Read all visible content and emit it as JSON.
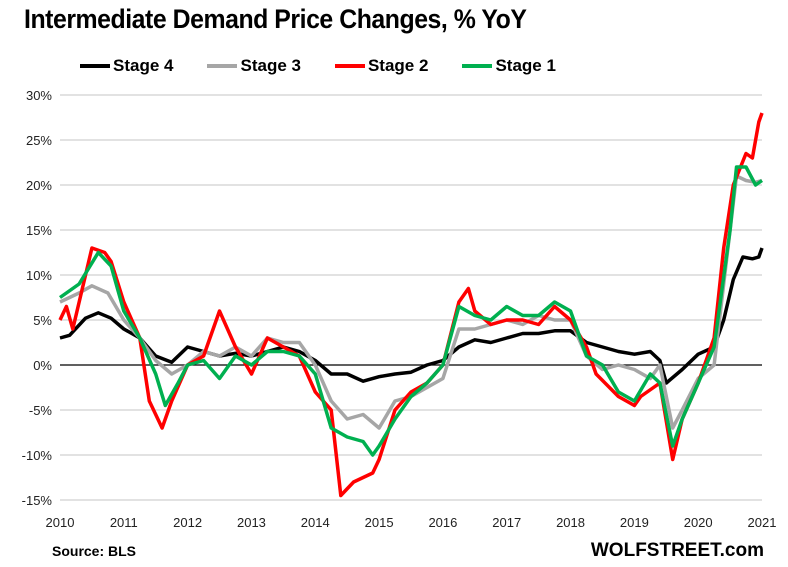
{
  "chart_data": {
    "type": "line",
    "title": "Intermediate Demand Price Changes, % YoY",
    "xlabel": "",
    "ylabel": "",
    "xlim": [
      2010,
      2021
    ],
    "ylim": [
      -15,
      30
    ],
    "yticks": [
      30,
      25,
      20,
      15,
      10,
      5,
      0,
      -5,
      -10,
      -15
    ],
    "ytick_labels": [
      "30%",
      "25%",
      "20%",
      "15%",
      "10%",
      "5%",
      "0%",
      "-5%",
      "-10%",
      "-15%"
    ],
    "xtick_labels": [
      "2010",
      "2011",
      "2012",
      "2013",
      "2014",
      "2015",
      "2016",
      "2017",
      "2018",
      "2019",
      "2020",
      "2021"
    ],
    "grid": true,
    "legend_position": "top",
    "series": [
      {
        "name": "Stage 4",
        "color": "#000000",
        "points": [
          [
            2010,
            3
          ],
          [
            2010.15,
            3.3
          ],
          [
            2010.4,
            5.2
          ],
          [
            2010.6,
            5.8
          ],
          [
            2010.8,
            5.2
          ],
          [
            2011,
            4
          ],
          [
            2011.25,
            3
          ],
          [
            2011.5,
            1
          ],
          [
            2011.75,
            0.3
          ],
          [
            2012,
            2
          ],
          [
            2012.25,
            1.5
          ],
          [
            2012.5,
            1
          ],
          [
            2012.75,
            1.3
          ],
          [
            2013,
            1
          ],
          [
            2013.25,
            1.5
          ],
          [
            2013.5,
            2
          ],
          [
            2013.75,
            1.5
          ],
          [
            2014,
            0.5
          ],
          [
            2014.25,
            -1
          ],
          [
            2014.5,
            -1
          ],
          [
            2014.75,
            -1.8
          ],
          [
            2015,
            -1.3
          ],
          [
            2015.25,
            -1
          ],
          [
            2015.5,
            -0.8
          ],
          [
            2015.75,
            0
          ],
          [
            2016,
            0.5
          ],
          [
            2016.25,
            2
          ],
          [
            2016.5,
            2.8
          ],
          [
            2016.75,
            2.5
          ],
          [
            2017,
            3
          ],
          [
            2017.25,
            3.5
          ],
          [
            2017.5,
            3.5
          ],
          [
            2017.75,
            3.8
          ],
          [
            2018,
            3.8
          ],
          [
            2018.25,
            2.5
          ],
          [
            2018.5,
            2
          ],
          [
            2018.75,
            1.5
          ],
          [
            2019,
            1.2
          ],
          [
            2019.25,
            1.5
          ],
          [
            2019.4,
            0.5
          ],
          [
            2019.5,
            -2
          ],
          [
            2019.75,
            -0.5
          ],
          [
            2020,
            1.2
          ],
          [
            2020.25,
            2
          ],
          [
            2020.4,
            5
          ],
          [
            2020.55,
            9.5
          ],
          [
            2020.7,
            12
          ],
          [
            2020.85,
            11.8
          ],
          [
            2020.95,
            12
          ],
          [
            2021,
            13
          ]
        ]
      },
      {
        "name": "Stage 3",
        "color": "#a6a6a6",
        "points": [
          [
            2010,
            7
          ],
          [
            2010.3,
            8
          ],
          [
            2010.5,
            8.8
          ],
          [
            2010.75,
            8
          ],
          [
            2011,
            5
          ],
          [
            2011.25,
            3
          ],
          [
            2011.5,
            0.5
          ],
          [
            2011.75,
            -1
          ],
          [
            2012,
            0
          ],
          [
            2012.25,
            1.5
          ],
          [
            2012.5,
            1
          ],
          [
            2012.75,
            2
          ],
          [
            2013,
            1
          ],
          [
            2013.25,
            3
          ],
          [
            2013.5,
            2.5
          ],
          [
            2013.75,
            2.5
          ],
          [
            2014,
            0
          ],
          [
            2014.25,
            -4
          ],
          [
            2014.5,
            -6
          ],
          [
            2014.75,
            -5.5
          ],
          [
            2015,
            -7
          ],
          [
            2015.25,
            -4
          ],
          [
            2015.5,
            -3.5
          ],
          [
            2015.75,
            -2.5
          ],
          [
            2016,
            -1.5
          ],
          [
            2016.25,
            4
          ],
          [
            2016.5,
            4
          ],
          [
            2016.75,
            4.5
          ],
          [
            2017,
            5
          ],
          [
            2017.25,
            4.5
          ],
          [
            2017.5,
            5.5
          ],
          [
            2017.75,
            5
          ],
          [
            2018,
            5
          ],
          [
            2018.25,
            1
          ],
          [
            2018.5,
            -0.5
          ],
          [
            2018.75,
            0
          ],
          [
            2019,
            -0.5
          ],
          [
            2019.25,
            -1.5
          ],
          [
            2019.4,
            0
          ],
          [
            2019.6,
            -7
          ],
          [
            2019.75,
            -5
          ],
          [
            2020,
            -1.5
          ],
          [
            2020.25,
            0
          ],
          [
            2020.45,
            12
          ],
          [
            2020.6,
            21
          ],
          [
            2020.75,
            20.5
          ],
          [
            2020.9,
            20.3
          ],
          [
            2021,
            20.5
          ]
        ]
      },
      {
        "name": "Stage 2",
        "color": "#ff0000",
        "points": [
          [
            2010,
            5
          ],
          [
            2010.1,
            6.5
          ],
          [
            2010.2,
            4
          ],
          [
            2010.5,
            13
          ],
          [
            2010.7,
            12.5
          ],
          [
            2010.8,
            11.5
          ],
          [
            2011,
            7
          ],
          [
            2011.25,
            3
          ],
          [
            2011.4,
            -4
          ],
          [
            2011.6,
            -7
          ],
          [
            2011.75,
            -4
          ],
          [
            2012,
            0
          ],
          [
            2012.25,
            1
          ],
          [
            2012.5,
            6
          ],
          [
            2012.75,
            2
          ],
          [
            2013,
            -1
          ],
          [
            2013.25,
            3
          ],
          [
            2013.5,
            2
          ],
          [
            2013.75,
            1
          ],
          [
            2014,
            -3
          ],
          [
            2014.25,
            -5
          ],
          [
            2014.4,
            -14.5
          ],
          [
            2014.6,
            -13
          ],
          [
            2014.9,
            -12
          ],
          [
            2015,
            -10.5
          ],
          [
            2015.25,
            -5
          ],
          [
            2015.5,
            -3
          ],
          [
            2015.75,
            -2
          ],
          [
            2016,
            0
          ],
          [
            2016.25,
            7
          ],
          [
            2016.4,
            8.5
          ],
          [
            2016.5,
            6
          ],
          [
            2016.75,
            4.5
          ],
          [
            2017,
            5
          ],
          [
            2017.25,
            5
          ],
          [
            2017.5,
            4.5
          ],
          [
            2017.75,
            6.5
          ],
          [
            2018,
            5
          ],
          [
            2018.25,
            2
          ],
          [
            2018.4,
            -1
          ],
          [
            2018.75,
            -3.5
          ],
          [
            2019,
            -4.5
          ],
          [
            2019.1,
            -3.5
          ],
          [
            2019.4,
            -2
          ],
          [
            2019.6,
            -10.5
          ],
          [
            2019.75,
            -6
          ],
          [
            2020,
            -2
          ],
          [
            2020.25,
            3
          ],
          [
            2020.4,
            13
          ],
          [
            2020.55,
            20
          ],
          [
            2020.75,
            23.5
          ],
          [
            2020.85,
            23
          ],
          [
            2020.95,
            27
          ],
          [
            2021,
            28
          ]
        ]
      },
      {
        "name": "Stage 1",
        "color": "#00b050",
        "points": [
          [
            2010,
            7.5
          ],
          [
            2010.3,
            9
          ],
          [
            2010.6,
            12.5
          ],
          [
            2010.8,
            11
          ],
          [
            2011,
            6
          ],
          [
            2011.25,
            3
          ],
          [
            2011.5,
            -1
          ],
          [
            2011.65,
            -4.5
          ],
          [
            2011.85,
            -2
          ],
          [
            2012,
            0
          ],
          [
            2012.25,
            0.5
          ],
          [
            2012.5,
            -1.5
          ],
          [
            2012.75,
            1
          ],
          [
            2013,
            0
          ],
          [
            2013.25,
            1.5
          ],
          [
            2013.5,
            1.5
          ],
          [
            2013.75,
            1
          ],
          [
            2014,
            -1
          ],
          [
            2014.25,
            -7
          ],
          [
            2014.5,
            -8
          ],
          [
            2014.75,
            -8.5
          ],
          [
            2014.9,
            -10
          ],
          [
            2015,
            -9
          ],
          [
            2015.25,
            -6
          ],
          [
            2015.5,
            -3.5
          ],
          [
            2015.75,
            -2
          ],
          [
            2016,
            0
          ],
          [
            2016.25,
            6.5
          ],
          [
            2016.5,
            5.5
          ],
          [
            2016.75,
            5
          ],
          [
            2017,
            6.5
          ],
          [
            2017.25,
            5.5
          ],
          [
            2017.5,
            5.5
          ],
          [
            2017.75,
            7
          ],
          [
            2018,
            6
          ],
          [
            2018.25,
            1
          ],
          [
            2018.5,
            0
          ],
          [
            2018.75,
            -3
          ],
          [
            2019,
            -4
          ],
          [
            2019.25,
            -1
          ],
          [
            2019.4,
            -2
          ],
          [
            2019.6,
            -9
          ],
          [
            2019.75,
            -6
          ],
          [
            2020,
            -2
          ],
          [
            2020.25,
            2
          ],
          [
            2020.5,
            15
          ],
          [
            2020.6,
            22
          ],
          [
            2020.75,
            22
          ],
          [
            2020.9,
            20
          ],
          [
            2021,
            20.5
          ]
        ]
      }
    ]
  },
  "footer": {
    "source": "Source: BLS",
    "brand": "WOLFSTREET.com"
  }
}
